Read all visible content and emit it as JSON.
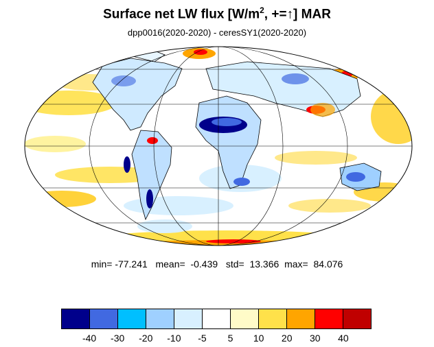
{
  "title": {
    "text": "Surface net LW flux [W/m",
    "sup": "2",
    "tail": ", +=↑]  MAR"
  },
  "subtitle": "dpp0016(2020-2020) - ceresSY1(2020-2020)",
  "stats": {
    "min": "-77.241",
    "mean": "-0.439",
    "std": "13.366",
    "max": "84.076"
  },
  "colorbar": {
    "colors": [
      "#00008b",
      "#4169e1",
      "#00bfff",
      "#9fd0ff",
      "#d8f0ff",
      "#ffffff",
      "#fffbc8",
      "#ffe14a",
      "#ffa500",
      "#ff0000",
      "#c00000"
    ],
    "labels": [
      "-40",
      "-30",
      "-20",
      "-10",
      "-5",
      "5",
      "10",
      "20",
      "30",
      "40"
    ]
  },
  "map": {
    "projection": "Mollweide",
    "coastlines": true,
    "graticule": true
  }
}
